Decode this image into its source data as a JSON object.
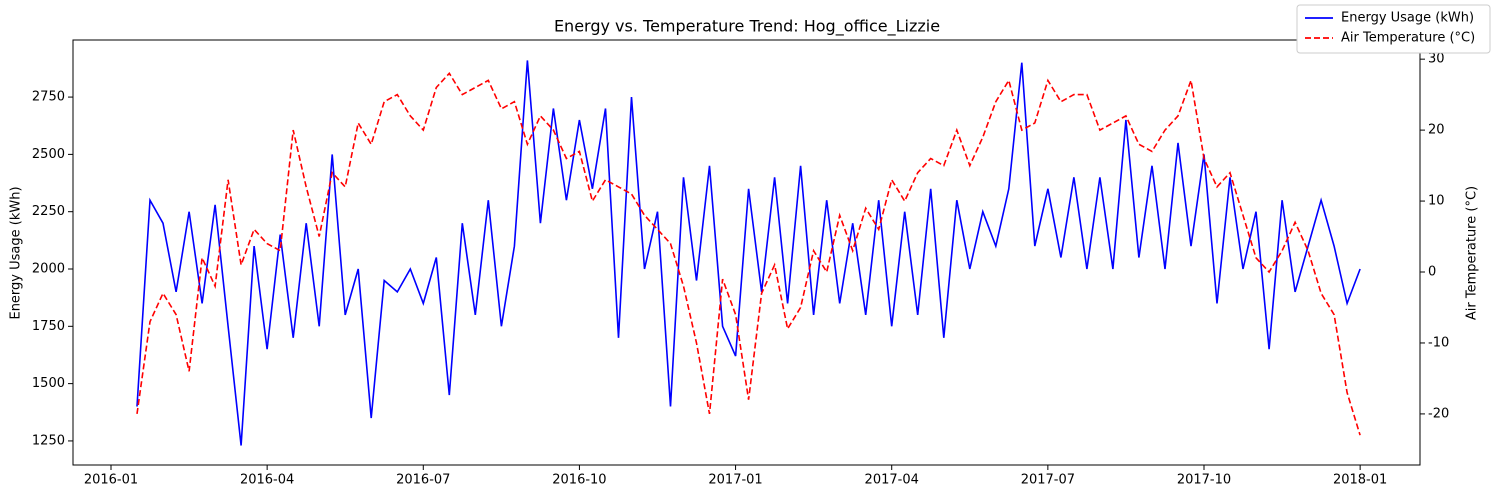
{
  "chart_data": {
    "type": "line",
    "title": "Energy vs. Temperature Trend: Hog_office_Lizzie",
    "y_label": "Energy Usage (kWh)",
    "y2_label": "Air Temperature (°C)",
    "x": [
      0.5,
      0.75,
      1,
      1.25,
      1.5,
      1.75,
      2,
      2.25,
      2.5,
      2.75,
      3,
      3.25,
      3.5,
      3.75,
      4,
      4.25,
      4.5,
      4.75,
      5,
      5.25,
      5.5,
      5.75,
      6,
      6.25,
      6.5,
      6.75,
      7,
      7.25,
      7.5,
      7.75,
      8,
      8.25,
      8.5,
      8.75,
      9,
      9.25,
      9.5,
      9.75,
      10,
      10.25,
      10.5,
      10.75,
      11,
      11.25,
      11.5,
      11.75,
      12,
      12.25,
      12.5,
      12.75,
      13,
      13.25,
      13.5,
      13.75,
      14,
      14.25,
      14.5,
      14.75,
      15,
      15.25,
      15.5,
      15.75,
      16,
      16.25,
      16.5,
      16.75,
      17,
      17.25,
      17.5,
      17.75,
      18,
      18.25,
      18.5,
      18.75,
      19,
      19.25,
      19.5,
      19.75,
      20,
      20.25,
      20.5,
      20.75,
      21,
      21.25,
      21.5,
      21.75,
      22,
      22.25,
      22.5,
      22.75,
      23,
      23.25,
      23.5,
      23.75,
      24
    ],
    "series": [
      {
        "name": "Energy Usage (kWh)",
        "color": "#0000ff",
        "dash": "solid",
        "axis": "y",
        "values": [
          1400,
          2300,
          2200,
          1900,
          2250,
          1850,
          2280,
          1750,
          1230,
          2100,
          1650,
          2150,
          1700,
          2200,
          1750,
          2500,
          1800,
          2000,
          1350,
          1950,
          1900,
          2000,
          1850,
          2050,
          1450,
          2200,
          1800,
          2300,
          1750,
          2100,
          2910,
          2200,
          2700,
          2300,
          2650,
          2350,
          2700,
          1700,
          2750,
          2000,
          2250,
          1400,
          2400,
          1950,
          2450,
          1750,
          1620,
          2350,
          1900,
          2400,
          1850,
          2450,
          1800,
          2300,
          1850,
          2200,
          1800,
          2300,
          1750,
          2250,
          1800,
          2350,
          1700,
          2300,
          2000,
          2250,
          2100,
          2350,
          2900,
          2100,
          2350,
          2050,
          2400,
          2000,
          2400,
          2000,
          2650,
          2050,
          2450,
          2000,
          2550,
          2100,
          2500,
          1850,
          2400,
          2000,
          2250,
          1650,
          2300,
          1900,
          2100,
          2300,
          2100,
          1850,
          2000
        ]
      },
      {
        "name": "Air Temperature (°C)",
        "color": "#ff0000",
        "dash": "dashed",
        "axis": "y2",
        "values": [
          -20,
          -7,
          -3,
          -6,
          -14,
          2,
          -2,
          13,
          1,
          6,
          4,
          3,
          20,
          12,
          5,
          14,
          12,
          21,
          18,
          24,
          25,
          22,
          20,
          26,
          28,
          25,
          26,
          27,
          23,
          24,
          18,
          22,
          20,
          16,
          17,
          10,
          13,
          12,
          11,
          8,
          6,
          4,
          -2,
          -10,
          -20,
          -1,
          -6,
          -18,
          -3,
          1,
          -8,
          -5,
          3,
          0,
          8,
          3,
          9,
          6,
          13,
          10,
          14,
          16,
          15,
          20,
          15,
          19,
          24,
          27,
          20,
          21,
          27,
          24,
          25,
          25,
          20,
          21,
          22,
          18,
          17,
          20,
          22,
          27,
          16,
          12,
          14,
          8,
          2,
          0,
          3,
          7,
          3,
          -3,
          -6,
          -17,
          -23
        ]
      }
    ],
    "xlim": [
      -0.73,
      25.15
    ],
    "xticks": [
      {
        "value": 0,
        "label": "2016-01"
      },
      {
        "value": 3,
        "label": "2016-04"
      },
      {
        "value": 6,
        "label": "2016-07"
      },
      {
        "value": 9,
        "label": "2016-10"
      },
      {
        "value": 12,
        "label": "2017-01"
      },
      {
        "value": 15,
        "label": "2017-04"
      },
      {
        "value": 18,
        "label": "2017-07"
      },
      {
        "value": 21,
        "label": "2017-10"
      },
      {
        "value": 24,
        "label": "2018-01"
      }
    ],
    "ylim": [
      1145,
      2999
    ],
    "yticks": [
      1250,
      1500,
      1750,
      2000,
      2250,
      2500,
      2750
    ],
    "y2lim": [
      -27.2,
      32.7
    ],
    "y2ticks": [
      -20,
      -10,
      0,
      10,
      20,
      30
    ],
    "legend": "upper right",
    "grid": false
  }
}
